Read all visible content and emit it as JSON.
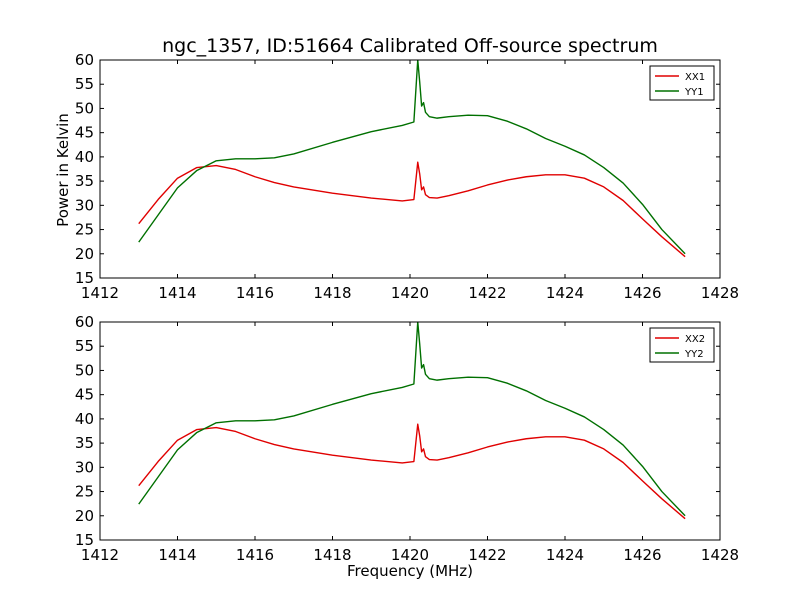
{
  "figure": {
    "title": "ngc_1357, ID:51664 Calibrated Off-source spectrum",
    "shared_xlabel": "Frequency (MHz)",
    "top_ylabel": "Power in Kelvin"
  },
  "colors": {
    "xx": "#e00000",
    "yy": "#007000",
    "axes": "#000000"
  },
  "chart_data": [
    {
      "type": "line",
      "title": "ngc_1357, ID:51664 Calibrated Off-source spectrum",
      "xlabel": "",
      "ylabel": "Power in Kelvin",
      "xlim": [
        1412,
        1428
      ],
      "ylim": [
        15,
        60
      ],
      "xticks": [
        "1412",
        "1414",
        "1416",
        "1418",
        "1420",
        "1422",
        "1424",
        "1426",
        "1428"
      ],
      "yticks": [
        "15",
        "20",
        "25",
        "30",
        "35",
        "40",
        "45",
        "50",
        "55",
        "60"
      ],
      "grid": false,
      "legend": "top-right",
      "series": [
        {
          "name": "XX1",
          "color": "#e00000",
          "x": [
            1413.0,
            1413.5,
            1414.0,
            1414.5,
            1415.0,
            1415.5,
            1416.0,
            1416.5,
            1417.0,
            1418.0,
            1419.0,
            1419.8,
            1420.1,
            1420.2,
            1420.25,
            1420.3,
            1420.35,
            1420.4,
            1420.5,
            1420.7,
            1421.0,
            1421.5,
            1422.0,
            1422.5,
            1423.0,
            1423.5,
            1424.0,
            1424.5,
            1425.0,
            1425.5,
            1426.0,
            1426.5,
            1427.1
          ],
          "y": [
            26.2,
            31.2,
            35.6,
            37.8,
            38.2,
            37.4,
            35.9,
            34.7,
            33.8,
            32.5,
            31.5,
            30.9,
            31.2,
            38.9,
            36.5,
            33.2,
            33.8,
            32.2,
            31.6,
            31.5,
            32.0,
            33.0,
            34.2,
            35.2,
            35.9,
            36.3,
            36.3,
            35.6,
            33.8,
            31.0,
            27.2,
            23.5,
            19.4
          ]
        },
        {
          "name": "YY1",
          "color": "#007000",
          "x": [
            1413.0,
            1413.5,
            1414.0,
            1414.5,
            1415.0,
            1415.5,
            1416.0,
            1416.5,
            1417.0,
            1418.0,
            1419.0,
            1419.8,
            1420.1,
            1420.2,
            1420.25,
            1420.3,
            1420.35,
            1420.4,
            1420.5,
            1420.7,
            1421.0,
            1421.5,
            1422.0,
            1422.5,
            1423.0,
            1423.5,
            1424.0,
            1424.5,
            1425.0,
            1425.5,
            1426.0,
            1426.5,
            1427.1
          ],
          "y": [
            22.4,
            28.0,
            33.6,
            37.2,
            39.2,
            39.6,
            39.6,
            39.8,
            40.6,
            43.0,
            45.2,
            46.5,
            47.2,
            60.0,
            55.5,
            50.5,
            51.2,
            49.2,
            48.3,
            48.0,
            48.3,
            48.6,
            48.5,
            47.4,
            45.8,
            43.8,
            42.2,
            40.4,
            37.8,
            34.6,
            30.2,
            25.0,
            20.0
          ]
        }
      ]
    },
    {
      "type": "line",
      "title": "",
      "xlabel": "Frequency (MHz)",
      "ylabel": "",
      "xlim": [
        1412,
        1428
      ],
      "ylim": [
        15,
        60
      ],
      "xticks": [
        "1412",
        "1414",
        "1416",
        "1418",
        "1420",
        "1422",
        "1424",
        "1426",
        "1428"
      ],
      "yticks": [
        "15",
        "20",
        "25",
        "30",
        "35",
        "40",
        "45",
        "50",
        "55",
        "60"
      ],
      "grid": false,
      "legend": "top-right",
      "series": [
        {
          "name": "XX2",
          "color": "#e00000",
          "x": [
            1413.0,
            1413.5,
            1414.0,
            1414.5,
            1415.0,
            1415.5,
            1416.0,
            1416.5,
            1417.0,
            1418.0,
            1419.0,
            1419.8,
            1420.1,
            1420.2,
            1420.25,
            1420.3,
            1420.35,
            1420.4,
            1420.5,
            1420.7,
            1421.0,
            1421.5,
            1422.0,
            1422.5,
            1423.0,
            1423.5,
            1424.0,
            1424.5,
            1425.0,
            1425.5,
            1426.0,
            1426.5,
            1427.1
          ],
          "y": [
            26.2,
            31.2,
            35.6,
            37.8,
            38.2,
            37.4,
            35.9,
            34.7,
            33.8,
            32.5,
            31.5,
            30.9,
            31.2,
            38.9,
            36.5,
            33.2,
            33.8,
            32.2,
            31.6,
            31.5,
            32.0,
            33.0,
            34.2,
            35.2,
            35.9,
            36.3,
            36.3,
            35.6,
            33.8,
            31.0,
            27.2,
            23.5,
            19.4
          ]
        },
        {
          "name": "YY2",
          "color": "#007000",
          "x": [
            1413.0,
            1413.5,
            1414.0,
            1414.5,
            1415.0,
            1415.5,
            1416.0,
            1416.5,
            1417.0,
            1418.0,
            1419.0,
            1419.8,
            1420.1,
            1420.2,
            1420.25,
            1420.3,
            1420.35,
            1420.4,
            1420.5,
            1420.7,
            1421.0,
            1421.5,
            1422.0,
            1422.5,
            1423.0,
            1423.5,
            1424.0,
            1424.5,
            1425.0,
            1425.5,
            1426.0,
            1426.5,
            1427.1
          ],
          "y": [
            22.4,
            28.0,
            33.6,
            37.2,
            39.2,
            39.6,
            39.6,
            39.8,
            40.6,
            43.0,
            45.2,
            46.5,
            47.2,
            60.0,
            55.5,
            50.5,
            51.2,
            49.2,
            48.3,
            48.0,
            48.3,
            48.6,
            48.5,
            47.4,
            45.8,
            43.8,
            42.2,
            40.4,
            37.8,
            34.6,
            30.2,
            25.0,
            20.0
          ]
        }
      ]
    }
  ]
}
